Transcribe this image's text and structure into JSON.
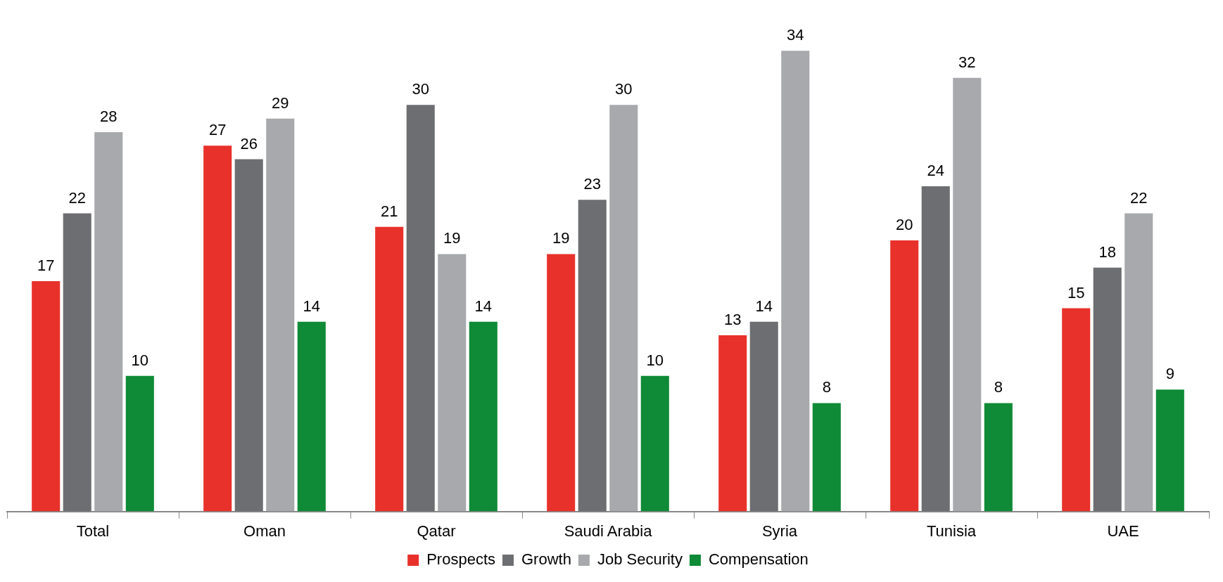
{
  "chart_data": {
    "type": "bar",
    "categories": [
      "Total",
      "Oman",
      "Qatar",
      "Saudi Arabia",
      "Syria",
      "Tunisia",
      "UAE"
    ],
    "series": [
      {
        "name": "Prospects",
        "color": "#e8312a",
        "values": [
          17,
          27,
          21,
          19,
          13,
          20,
          15
        ]
      },
      {
        "name": "Growth",
        "color": "#6d6e71",
        "values": [
          22,
          26,
          30,
          23,
          14,
          24,
          18
        ]
      },
      {
        "name": "Job Security",
        "color": "#a7a9ac",
        "values": [
          28,
          29,
          19,
          30,
          34,
          32,
          22
        ]
      },
      {
        "name": "Compensation",
        "color": "#0f8a36",
        "values": [
          10,
          14,
          14,
          10,
          8,
          8,
          9
        ]
      }
    ],
    "data_labels": true,
    "legend": "bottom",
    "grid": false
  }
}
